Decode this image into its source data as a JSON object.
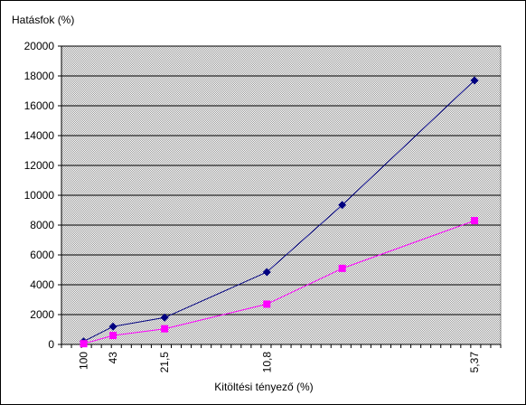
{
  "chart_data": {
    "type": "line",
    "ylabel": "Hatásfok (%)",
    "xlabel": "Kitöltési tényező (%)",
    "ylim": [
      0,
      20000
    ],
    "yticks": [
      0,
      2000,
      4000,
      6000,
      8000,
      10000,
      12000,
      14000,
      16000,
      18000,
      20000
    ],
    "x_scale": "reciprocal",
    "x": [
      100,
      43,
      21.5,
      10.8,
      5.37
    ],
    "x_tick_labels": [
      "100",
      "43",
      "21,5",
      "10,8",
      "5,37"
    ],
    "grid": true,
    "legend": "none",
    "series": [
      {
        "color": "#000080",
        "marker": "diamond",
        "points": [
          {
            "x": 100,
            "y": 200
          },
          {
            "x": 43,
            "y": 1200
          },
          {
            "x": 21.5,
            "y": 1800
          },
          {
            "x": 10.8,
            "y": 4850
          },
          {
            "x": 7.9,
            "y": 9350
          },
          {
            "x": 5.37,
            "y": 17700
          }
        ]
      },
      {
        "color": "#FF00FF",
        "marker": "square",
        "points": [
          {
            "x": 100,
            "y": 50
          },
          {
            "x": 43,
            "y": 600
          },
          {
            "x": 21.5,
            "y": 1050
          },
          {
            "x": 10.8,
            "y": 2700
          },
          {
            "x": 7.9,
            "y": 5100
          },
          {
            "x": 5.37,
            "y": 8300
          }
        ]
      }
    ]
  }
}
